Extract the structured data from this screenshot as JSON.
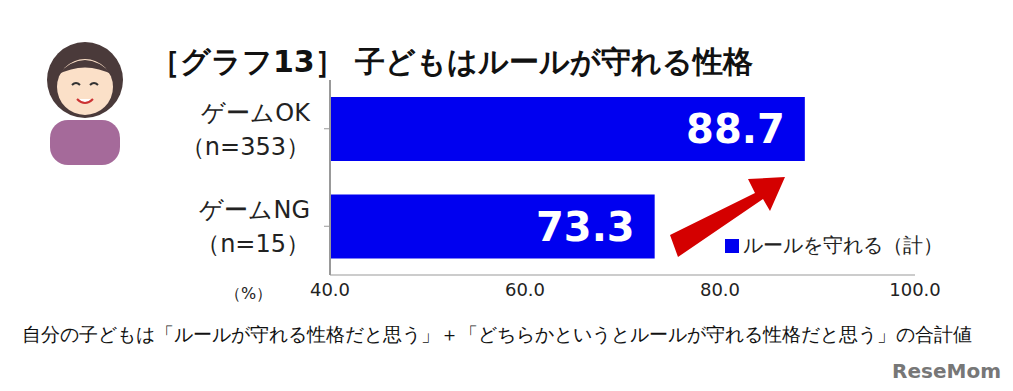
{
  "chart_data": {
    "type": "bar",
    "title": "［グラフ13］ 子どもはルールが守れる性格",
    "orientation": "horizontal",
    "categories": [
      "ゲームOK\n（n=353）",
      "ゲームNG\n（n=15）"
    ],
    "series": [
      {
        "name": "ルールを守れる（計）",
        "color": "#0000f0",
        "values": [
          88.7,
          73.3
        ]
      }
    ],
    "xlim": [
      40,
      100
    ],
    "xticks": [
      {
        "value": 40,
        "label": "40.0"
      },
      {
        "value": 60,
        "label": "60.0"
      },
      {
        "value": 80,
        "label": "80.0"
      },
      {
        "value": 100,
        "label": "100.0"
      }
    ],
    "xlabel": "（%）",
    "note": "自分の子どもは「ルールが守れる性格だと思う」＋「どちらかというとルールが守れる性格だと思う」の合計値",
    "source": "ReseMom",
    "data_labels": true,
    "legend": "lower right",
    "grid": false
  }
}
